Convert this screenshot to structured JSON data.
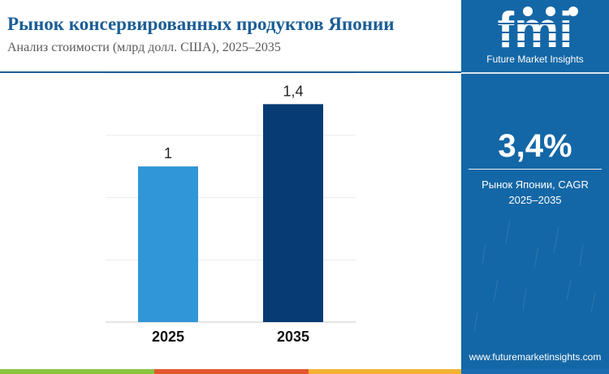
{
  "header": {
    "title": "Рынок консервированных продуктов Японии",
    "subtitle": "Анализ стоимости (млрд долл. США), 2025–2035"
  },
  "brand": {
    "logo_text": "fmi",
    "name": "Future Market Insights",
    "website": "www.futuremarketinsights.com"
  },
  "kpi": {
    "value": "3,4%",
    "label_line1": "Рынок Японии, CAGR",
    "label_line2": "2025–2035"
  },
  "chart_data": {
    "type": "bar",
    "categories": [
      "2025",
      "2035"
    ],
    "values": [
      1,
      1.4
    ],
    "value_labels": [
      "1",
      "1,4"
    ],
    "ylim": [
      0,
      1.6
    ],
    "grid": true,
    "legend": "none",
    "bar_colors": [
      "#3196d8",
      "#063b74"
    ]
  },
  "colors": {
    "title": "#1b5d96",
    "panel": "#1467a6",
    "stripe": [
      "#8ac43f",
      "#e2572e",
      "#f2b233",
      "#1d6ab0"
    ]
  }
}
